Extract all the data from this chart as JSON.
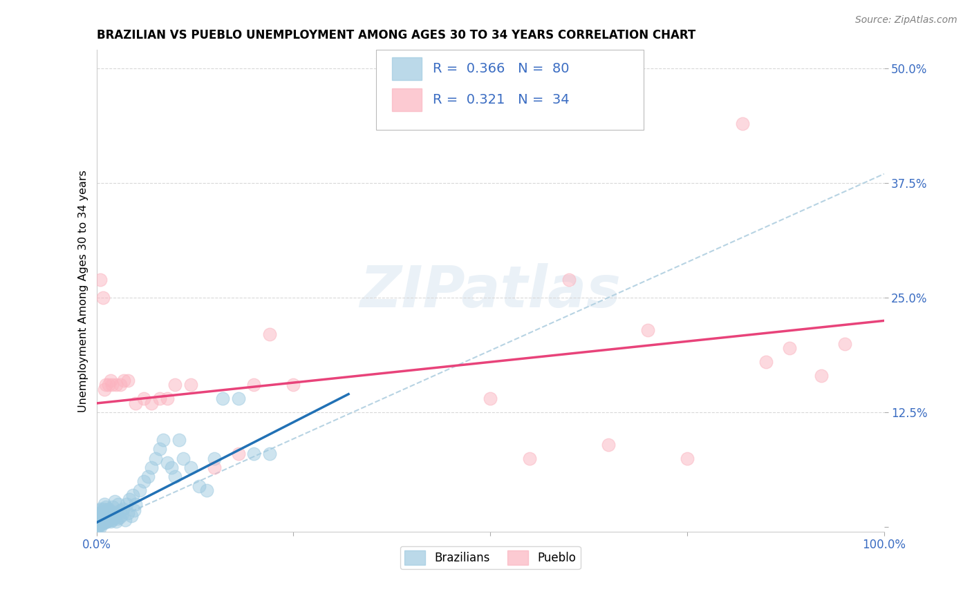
{
  "title": "BRAZILIAN VS PUEBLO UNEMPLOYMENT AMONG AGES 30 TO 34 YEARS CORRELATION CHART",
  "source": "Source: ZipAtlas.com",
  "ylabel": "Unemployment Among Ages 30 to 34 years",
  "xlim": [
    0.0,
    1.0
  ],
  "ylim": [
    -0.005,
    0.52
  ],
  "xtick_positions": [
    0.0,
    0.25,
    0.5,
    0.75,
    1.0
  ],
  "xticklabels": [
    "0.0%",
    "",
    "",
    "",
    "100.0%"
  ],
  "ytick_positions": [
    0.0,
    0.125,
    0.25,
    0.375,
    0.5
  ],
  "yticklabels": [
    "",
    "12.5%",
    "25.0%",
    "37.5%",
    "50.0%"
  ],
  "blue_color": "#9ecae1",
  "blue_edge": "#6baed6",
  "pink_color": "#fbb4c0",
  "pink_edge": "#f768a1",
  "blue_line_color": "#2171b5",
  "pink_line_color": "#e8437a",
  "dashed_color": "#b0cfe0",
  "grid_color": "#d8d8d8",
  "R_blue": "0.366",
  "N_blue": "80",
  "R_pink": "0.321",
  "N_pink": "34",
  "watermark": "ZIPatlas",
  "blue_line_x0": 0.0,
  "blue_line_y0": 0.005,
  "blue_line_x1": 0.32,
  "blue_line_y1": 0.145,
  "pink_line_x0": 0.0,
  "pink_line_y0": 0.135,
  "pink_line_x1": 1.0,
  "pink_line_y1": 0.225,
  "dashed_line_x0": 0.0,
  "dashed_line_y0": 0.0,
  "dashed_line_x1": 1.0,
  "dashed_line_y1": 0.385,
  "brazilians_x": [
    0.001,
    0.002,
    0.002,
    0.003,
    0.003,
    0.004,
    0.004,
    0.005,
    0.005,
    0.005,
    0.006,
    0.006,
    0.007,
    0.007,
    0.008,
    0.008,
    0.009,
    0.009,
    0.01,
    0.01,
    0.01,
    0.011,
    0.011,
    0.012,
    0.012,
    0.013,
    0.013,
    0.014,
    0.015,
    0.015,
    0.016,
    0.017,
    0.018,
    0.019,
    0.02,
    0.021,
    0.022,
    0.023,
    0.024,
    0.025,
    0.026,
    0.027,
    0.028,
    0.029,
    0.03,
    0.032,
    0.034,
    0.036,
    0.038,
    0.04,
    0.042,
    0.044,
    0.046,
    0.048,
    0.05,
    0.055,
    0.06,
    0.065,
    0.07,
    0.075,
    0.08,
    0.085,
    0.09,
    0.095,
    0.1,
    0.105,
    0.11,
    0.12,
    0.13,
    0.14,
    0.15,
    0.16,
    0.18,
    0.2,
    0.22,
    0.001,
    0.002,
    0.003,
    0.004,
    0.005
  ],
  "brazilians_y": [
    0.01,
    0.005,
    0.015,
    0.008,
    0.012,
    0.006,
    0.018,
    0.004,
    0.009,
    0.02,
    0.003,
    0.014,
    0.007,
    0.016,
    0.005,
    0.013,
    0.008,
    0.02,
    0.005,
    0.01,
    0.025,
    0.007,
    0.015,
    0.009,
    0.022,
    0.006,
    0.018,
    0.011,
    0.007,
    0.02,
    0.009,
    0.013,
    0.006,
    0.017,
    0.008,
    0.022,
    0.01,
    0.028,
    0.012,
    0.006,
    0.015,
    0.009,
    0.025,
    0.011,
    0.018,
    0.013,
    0.02,
    0.008,
    0.025,
    0.015,
    0.03,
    0.012,
    0.035,
    0.018,
    0.025,
    0.04,
    0.05,
    0.055,
    0.065,
    0.075,
    0.085,
    0.095,
    0.07,
    0.065,
    0.055,
    0.095,
    0.075,
    0.065,
    0.045,
    0.04,
    0.075,
    0.14,
    0.14,
    0.08,
    0.08,
    0.003,
    0.002,
    0.001,
    0.004,
    0.0
  ],
  "pueblo_x": [
    0.005,
    0.008,
    0.01,
    0.012,
    0.015,
    0.018,
    0.02,
    0.025,
    0.03,
    0.035,
    0.04,
    0.05,
    0.06,
    0.07,
    0.08,
    0.09,
    0.1,
    0.12,
    0.15,
    0.18,
    0.2,
    0.22,
    0.25,
    0.5,
    0.55,
    0.6,
    0.65,
    0.7,
    0.75,
    0.82,
    0.85,
    0.88,
    0.92,
    0.95
  ],
  "pueblo_y": [
    0.27,
    0.25,
    0.15,
    0.155,
    0.155,
    0.16,
    0.155,
    0.155,
    0.155,
    0.16,
    0.16,
    0.135,
    0.14,
    0.135,
    0.14,
    0.14,
    0.155,
    0.155,
    0.065,
    0.08,
    0.155,
    0.21,
    0.155,
    0.14,
    0.075,
    0.27,
    0.09,
    0.215,
    0.075,
    0.44,
    0.18,
    0.195,
    0.165,
    0.2
  ]
}
